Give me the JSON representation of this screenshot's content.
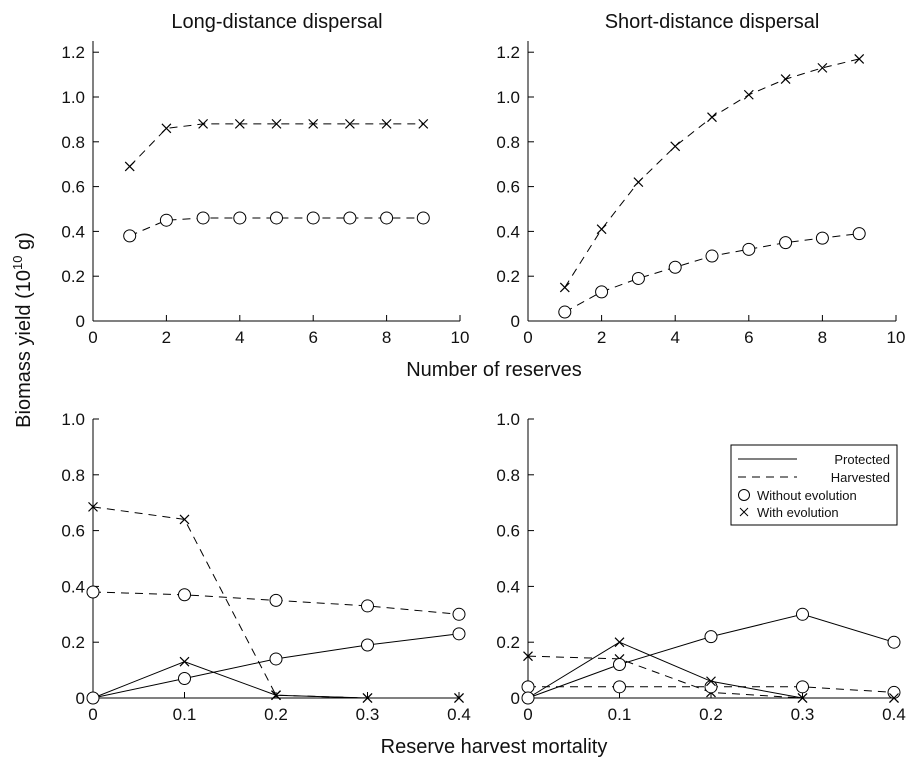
{
  "figure": {
    "shared_ylabel": "Biomass yield (10",
    "shared_ylabel_exp": "10",
    "shared_ylabel_end": " g)",
    "top_xlabel": "Number of reserves",
    "bottom_xlabel": "Reserve harvest mortality",
    "legend": {
      "protected": "Protected",
      "harvested": "Harvested",
      "without": "Without evolution",
      "with": "With evolution"
    }
  },
  "chart_data": [
    {
      "type": "line",
      "title": "Long-distance dispersal",
      "xlim": [
        0,
        10
      ],
      "ylim": [
        0,
        1.25
      ],
      "xticks": [
        "0",
        "2",
        "4",
        "6",
        "8",
        "10"
      ],
      "yticks": [
        "0",
        "0.2",
        "0.4",
        "0.6",
        "0.8",
        "1.0",
        "1.2"
      ],
      "series": [
        {
          "style": "dashed",
          "marker": "x",
          "x": [
            1,
            2,
            3,
            4,
            5,
            6,
            7,
            8,
            9
          ],
          "y": [
            0.69,
            0.86,
            0.88,
            0.88,
            0.88,
            0.88,
            0.88,
            0.88,
            0.88
          ]
        },
        {
          "style": "dashed",
          "marker": "o",
          "x": [
            1,
            2,
            3,
            4,
            5,
            6,
            7,
            8,
            9
          ],
          "y": [
            0.38,
            0.45,
            0.46,
            0.46,
            0.46,
            0.46,
            0.46,
            0.46,
            0.46
          ]
        }
      ]
    },
    {
      "type": "line",
      "title": "Short-distance dispersal",
      "xlim": [
        0,
        10
      ],
      "ylim": [
        0,
        1.25
      ],
      "xticks": [
        "0",
        "2",
        "4",
        "6",
        "8",
        "10"
      ],
      "yticks": [
        "0",
        "0.2",
        "0.4",
        "0.6",
        "0.8",
        "1.0",
        "1.2"
      ],
      "series": [
        {
          "style": "dashed",
          "marker": "x",
          "x": [
            1,
            2,
            3,
            4,
            5,
            6,
            7,
            8,
            9
          ],
          "y": [
            0.15,
            0.41,
            0.62,
            0.78,
            0.91,
            1.01,
            1.08,
            1.13,
            1.17
          ]
        },
        {
          "style": "dashed",
          "marker": "o",
          "x": [
            1,
            2,
            3,
            4,
            5,
            6,
            7,
            8,
            9
          ],
          "y": [
            0.04,
            0.13,
            0.19,
            0.24,
            0.29,
            0.32,
            0.35,
            0.37,
            0.39
          ]
        }
      ]
    },
    {
      "type": "line",
      "title": "",
      "xlim": [
        0,
        0.4
      ],
      "ylim": [
        0,
        1.0
      ],
      "xticks": [
        "0",
        "0.1",
        "0.2",
        "0.3",
        "0.4"
      ],
      "yticks": [
        "0",
        "0.2",
        "0.4",
        "0.6",
        "0.8",
        "1.0"
      ],
      "series": [
        {
          "style": "dashed",
          "marker": "x",
          "x": [
            0,
            0.1,
            0.2,
            0.3,
            0.4
          ],
          "y": [
            0.685,
            0.64,
            0.01,
            0.0,
            0.0
          ]
        },
        {
          "style": "dashed",
          "marker": "o",
          "x": [
            0,
            0.1,
            0.2,
            0.3,
            0.4
          ],
          "y": [
            0.38,
            0.37,
            0.35,
            0.33,
            0.3
          ]
        },
        {
          "style": "solid",
          "marker": "x",
          "x": [
            0,
            0.1,
            0.2,
            0.3,
            0.4
          ],
          "y": [
            0.0,
            0.13,
            0.01,
            0.0,
            0.0
          ]
        },
        {
          "style": "solid",
          "marker": "o",
          "x": [
            0,
            0.1,
            0.2,
            0.3,
            0.4
          ],
          "y": [
            0.0,
            0.07,
            0.14,
            0.19,
            0.23
          ]
        }
      ]
    },
    {
      "type": "line",
      "title": "",
      "xlim": [
        0,
        0.4
      ],
      "ylim": [
        0,
        1.0
      ],
      "xticks": [
        "0",
        "0.1",
        "0.2",
        "0.3",
        "0.4"
      ],
      "yticks": [
        "0",
        "0.2",
        "0.4",
        "0.6",
        "0.8",
        "1.0"
      ],
      "legend_position": "top-right",
      "series": [
        {
          "style": "dashed",
          "marker": "x",
          "x": [
            0,
            0.1,
            0.2,
            0.3,
            0.4
          ],
          "y": [
            0.15,
            0.14,
            0.02,
            0.0,
            0.0
          ]
        },
        {
          "style": "dashed",
          "marker": "o",
          "x": [
            0,
            0.1,
            0.2,
            0.3,
            0.4
          ],
          "y": [
            0.04,
            0.04,
            0.04,
            0.04,
            0.02
          ]
        },
        {
          "style": "solid",
          "marker": "x",
          "x": [
            0,
            0.1,
            0.2,
            0.3,
            0.4
          ],
          "y": [
            0.0,
            0.2,
            0.06,
            0.0,
            0.0
          ]
        },
        {
          "style": "solid",
          "marker": "o",
          "x": [
            0,
            0.1,
            0.2,
            0.3,
            0.4
          ],
          "y": [
            0.0,
            0.12,
            0.22,
            0.3,
            0.2
          ]
        }
      ]
    }
  ]
}
